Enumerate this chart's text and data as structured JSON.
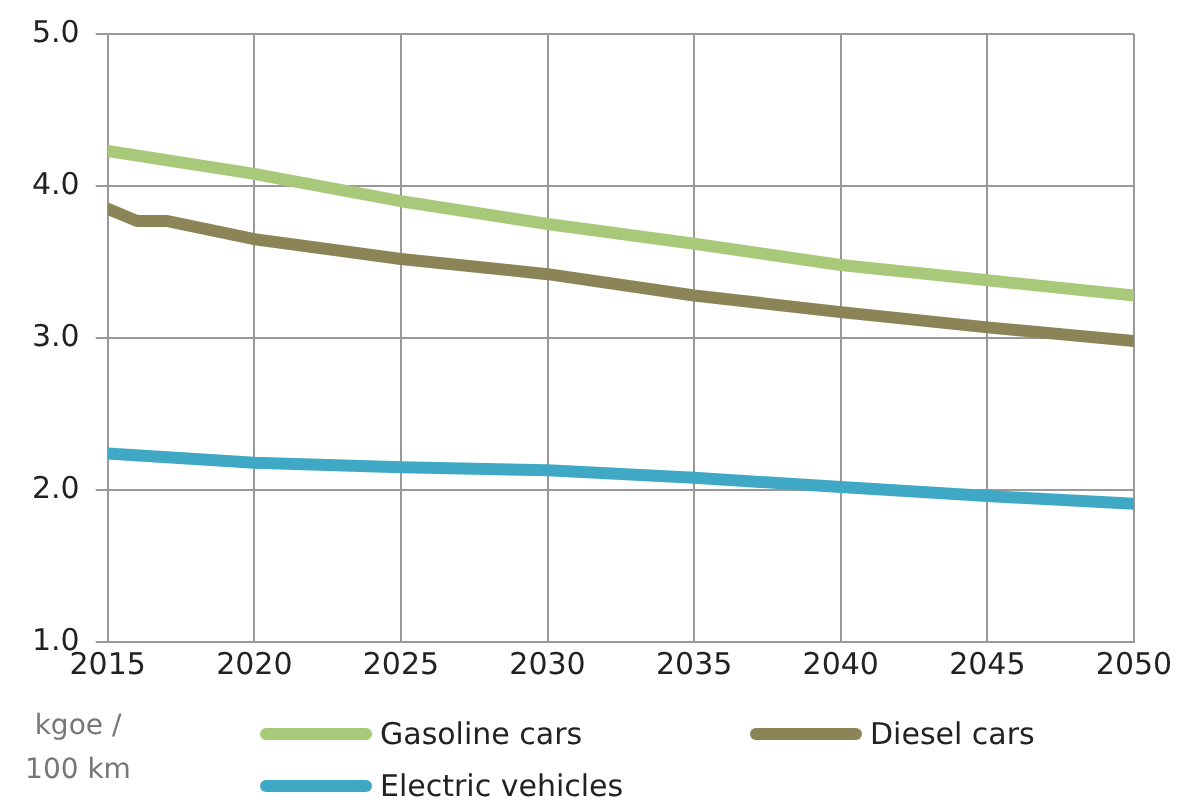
{
  "chart_data": {
    "type": "line",
    "ylabel": "kgoe / 100 km",
    "xlim": [
      2015,
      2050
    ],
    "xticks": [
      2015,
      2020,
      2025,
      2030,
      2035,
      2040,
      2045,
      2050
    ],
    "ylim": [
      1,
      5
    ],
    "yticks": [
      {
        "value": 1,
        "label": "1.0"
      },
      {
        "value": 2,
        "label": "2.0"
      },
      {
        "value": 3,
        "label": "3.0"
      },
      {
        "value": 4,
        "label": "4.0"
      },
      {
        "value": 5,
        "label": "5.0"
      }
    ],
    "grid": true,
    "legend": "bottom",
    "marker": "none",
    "line_style": "solid",
    "series": [
      {
        "name": "Gasoline cars",
        "color": "#a9c97a",
        "x": [
          2015,
          2020,
          2025,
          2030,
          2035,
          2040,
          2045,
          2050
        ],
        "values": [
          4.23,
          4.08,
          3.9,
          3.75,
          3.62,
          3.48,
          3.38,
          3.28
        ]
      },
      {
        "name": "Diesel cars",
        "color": "#8a8456",
        "x": [
          2015,
          2016,
          2017,
          2020,
          2025,
          2030,
          2035,
          2040,
          2045,
          2050
        ],
        "values": [
          3.85,
          3.77,
          3.77,
          3.65,
          3.52,
          3.42,
          3.28,
          3.17,
          3.07,
          2.98
        ]
      },
      {
        "name": "Electric vehicles",
        "color": "#3fa8c4",
        "x": [
          2015,
          2020,
          2025,
          2030,
          2035,
          2040,
          2045,
          2050
        ],
        "values": [
          2.24,
          2.18,
          2.15,
          2.13,
          2.08,
          2.02,
          1.96,
          1.91
        ]
      }
    ]
  }
}
